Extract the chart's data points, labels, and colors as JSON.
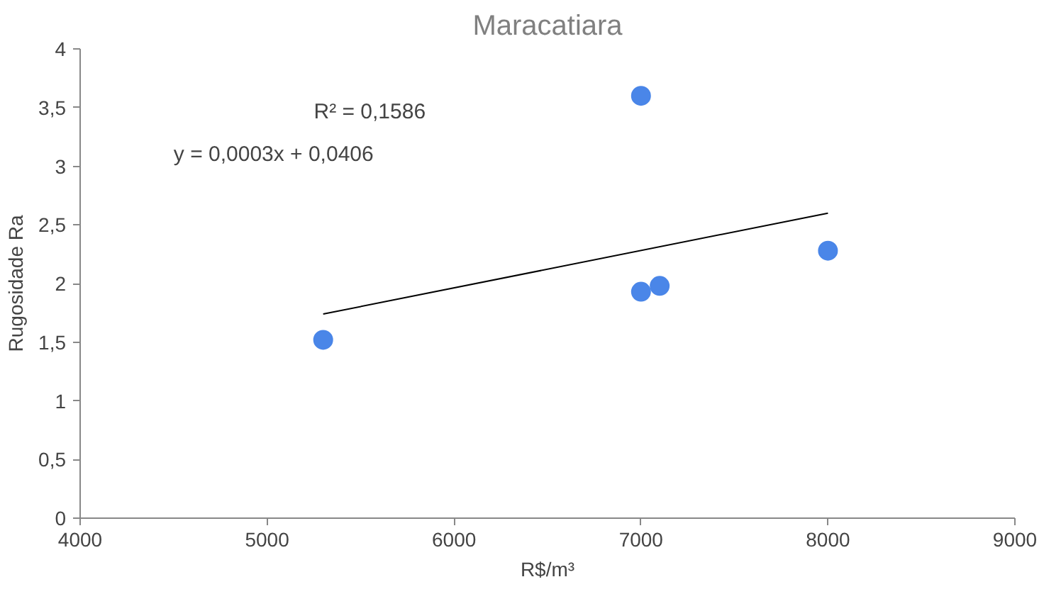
{
  "chart_data": {
    "type": "scatter",
    "title": "Maracatiara",
    "xlabel": "R$/m³",
    "ylabel": "Rugosidade Ra",
    "series": [
      {
        "color": "#4a86e8",
        "marker": "circle",
        "x": [
          5300,
          7000,
          7000,
          7100,
          8000
        ],
        "values": [
          1.52,
          3.6,
          1.93,
          1.98,
          2.28
        ]
      },
      {
        "type": "line",
        "marker": "none",
        "color": "#000000",
        "x": [
          5300,
          8000
        ],
        "values": [
          1.74,
          2.6
        ]
      }
    ],
    "xlim": [
      4000,
      9000
    ],
    "xticks": [
      4000,
      5000,
      6000,
      7000,
      8000,
      9000
    ],
    "ylim": [
      0,
      4
    ],
    "yticks": [
      0,
      {
        "value": 0.5,
        "label": "0,5"
      },
      1,
      {
        "value": 1.5,
        "label": "1,5"
      },
      2,
      {
        "value": 2.5,
        "label": "2,5"
      },
      3,
      {
        "value": 3.5,
        "label": "3,5"
      },
      4
    ],
    "annotations": [
      {
        "text": "R² = 0,1586"
      },
      {
        "text": "y = 0,0003x + 0,0406"
      }
    ],
    "grid": false
  }
}
